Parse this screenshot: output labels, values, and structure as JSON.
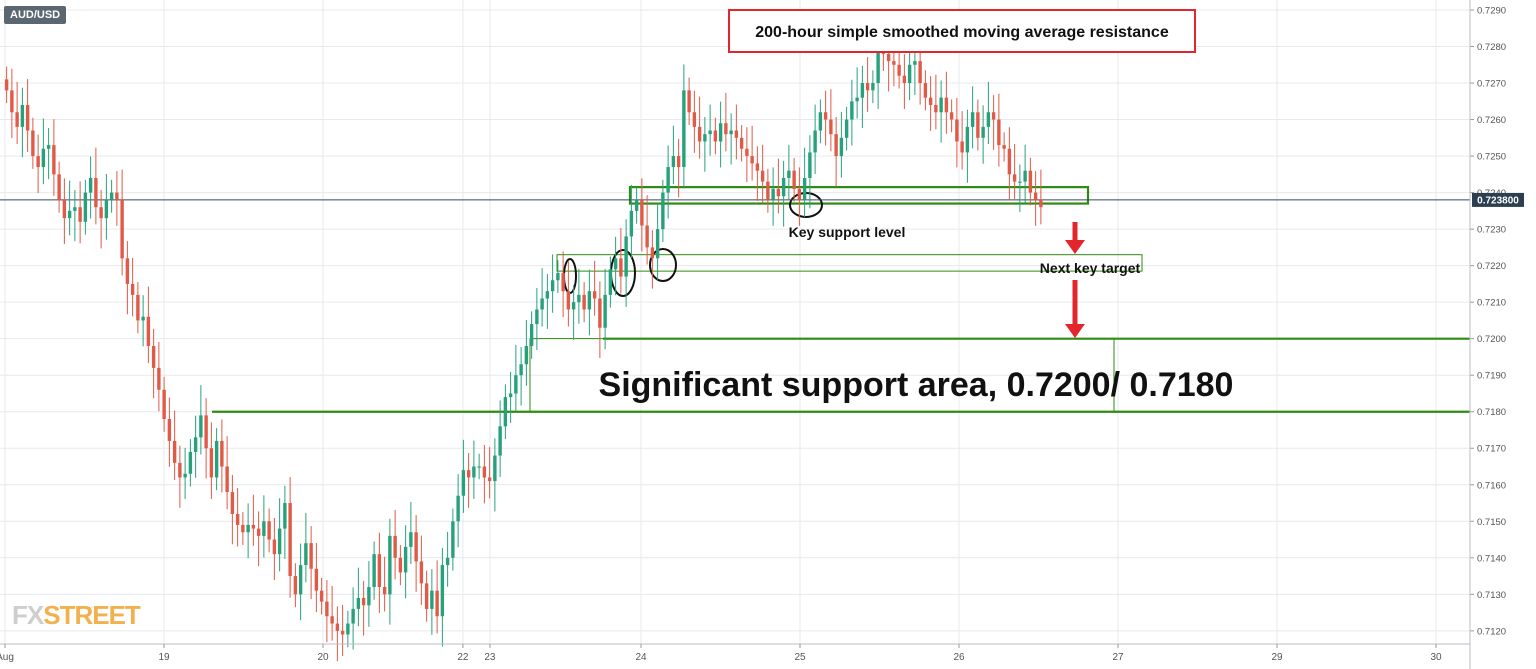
{
  "symbol": "AUD/USD",
  "logo": {
    "part1": "FX",
    "part2": "STREET"
  },
  "current_price": "0.723800",
  "colors": {
    "up": "#26a17b",
    "down": "#e05a47",
    "grid": "#e6e9ee",
    "axis_text": "#555555",
    "current_line": "#34495e",
    "zone_line": "#2e8b0f",
    "annotation_box": "#e3262c",
    "arrow": "#e3262c",
    "current_label_bg": "#2c3e50"
  },
  "annotations": {
    "resistance": "200-hour simple smoothed moving average resistance",
    "key_support": "Key support level",
    "next_target": "Next key target",
    "significant": "Significant support area, 0.7200/ 0.7180"
  },
  "chart_data": {
    "type": "candlestick",
    "title": "AUD/USD",
    "ylim": [
      0.7117,
      0.7292
    ],
    "y_ticks": [
      "0.7120",
      "0.7130",
      "0.7140",
      "0.7150",
      "0.7160",
      "0.7170",
      "0.7180",
      "0.7190",
      "0.7200",
      "0.7210",
      "0.7220",
      "0.7230",
      "0.7240",
      "0.7250",
      "0.7260",
      "0.7270",
      "0.7280",
      "0.7290"
    ],
    "x_ticks": [
      {
        "label": "Aug",
        "day": 18.0
      },
      {
        "label": "19",
        "day": 19.0
      },
      {
        "label": "20",
        "day": 20.0
      },
      {
        "label": "22",
        "day": 20.88
      },
      {
        "label": "23",
        "day": 21.05
      },
      {
        "label": "24",
        "day": 22.0
      },
      {
        "label": "25",
        "day": 23.0
      },
      {
        "label": "26",
        "day": 24.0
      },
      {
        "label": "27",
        "day": 25.0
      },
      {
        "label": "29",
        "day": 26.0
      },
      {
        "label": "30",
        "day": 27.0
      }
    ],
    "x_range": [
      18.0,
      27.85
    ],
    "closes": [
      0.7268,
      0.7262,
      0.7258,
      0.7264,
      0.7257,
      0.725,
      0.7247,
      0.7252,
      0.7253,
      0.7245,
      0.7238,
      0.7233,
      0.7235,
      0.7236,
      0.7232,
      0.724,
      0.7244,
      0.7236,
      0.7233,
      0.7238,
      0.724,
      0.7238,
      0.7222,
      0.7215,
      0.7212,
      0.7205,
      0.7206,
      0.7198,
      0.7192,
      0.7186,
      0.7178,
      0.7172,
      0.7166,
      0.7162,
      0.7163,
      0.7169,
      0.7173,
      0.7179,
      0.717,
      0.7162,
      0.7172,
      0.7165,
      0.7158,
      0.7152,
      0.7149,
      0.7147,
      0.7149,
      0.7148,
      0.7146,
      0.715,
      0.7145,
      0.7141,
      0.7148,
      0.7155,
      0.7135,
      0.713,
      0.7138,
      0.7144,
      0.7137,
      0.7131,
      0.7128,
      0.7124,
      0.7122,
      0.712,
      0.7119,
      0.7122,
      0.7126,
      0.7129,
      0.7127,
      0.7132,
      0.7141,
      0.7132,
      0.713,
      0.7146,
      0.714,
      0.7136,
      0.7143,
      0.7147,
      0.7139,
      0.7133,
      0.7126,
      0.7131,
      0.7124,
      0.7138,
      0.714,
      0.715,
      0.7157,
      0.7164,
      0.7162,
      0.7165,
      0.7165,
      0.7162,
      0.7161,
      0.7168,
      0.7176,
      0.7184,
      0.7185,
      0.719,
      0.7193,
      0.7198,
      0.7204,
      0.7208,
      0.7211,
      0.7213,
      0.7216,
      0.7218,
      0.7213,
      0.7208,
      0.721,
      0.7212,
      0.7208,
      0.7213,
      0.7211,
      0.7203,
      0.7212,
      0.7219,
      0.7222,
      0.7217,
      0.7228,
      0.7235,
      0.7238,
      0.7231,
      0.7225,
      0.7222,
      0.723,
      0.724,
      0.7247,
      0.725,
      0.7247,
      0.7268,
      0.7262,
      0.7258,
      0.7254,
      0.7256,
      0.7257,
      0.7254,
      0.7259,
      0.7256,
      0.7257,
      0.7255,
      0.7252,
      0.725,
      0.7248,
      0.7246,
      0.7243,
      0.7238,
      0.7241,
      0.7239,
      0.7244,
      0.7246,
      0.7241,
      0.7238,
      0.7244,
      0.7251,
      0.7257,
      0.7262,
      0.726,
      0.7256,
      0.725,
      0.7255,
      0.726,
      0.7265,
      0.7266,
      0.727,
      0.7268,
      0.727,
      0.7279,
      0.7278,
      0.7276,
      0.7275,
      0.7272,
      0.727,
      0.7275,
      0.7276,
      0.727,
      0.7266,
      0.7264,
      0.7262,
      0.7266,
      0.7262,
      0.726,
      0.7254,
      0.7251,
      0.7258,
      0.7262,
      0.7255,
      0.7258,
      0.7262,
      0.726,
      0.7253,
      0.7252,
      0.7245,
      0.7243,
      0.7243,
      0.7246,
      0.724,
      0.7238,
      0.7236
    ]
  }
}
